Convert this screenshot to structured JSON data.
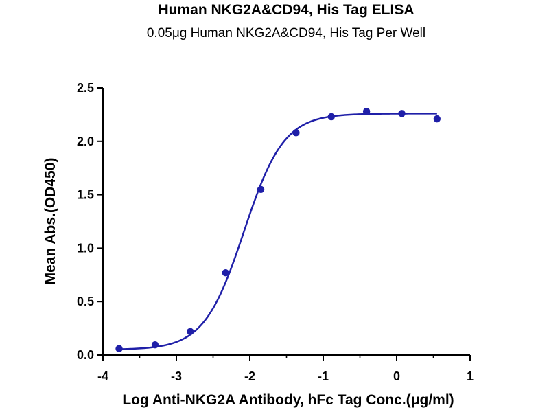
{
  "colors": {
    "series": "#1f1fa8",
    "axis": "#000000",
    "text": "#000000"
  },
  "chart_data": {
    "type": "scatter",
    "title": "Human NKG2A&CD94, His Tag ELISA",
    "subtitle": "0.05μg Human NKG2A&CD94, His Tag Per Well",
    "xlabel": "Log Anti-NKG2A Antibody, hFc Tag Conc.(μg/ml)",
    "ylabel": "Mean Abs.(OD450)",
    "xlim": [
      -4,
      1
    ],
    "ylim": [
      0,
      2.5
    ],
    "x_ticks": [
      "-4",
      "-3",
      "-2",
      "-1",
      "0",
      "1"
    ],
    "y_ticks": [
      "0.0",
      "0.5",
      "1.0",
      "1.5",
      "2.0",
      "2.5"
    ],
    "grid": false,
    "legend": "none",
    "series": [
      {
        "points": [
          {
            "x": -3.78,
            "y": 0.06
          },
          {
            "x": -3.29,
            "y": 0.095
          },
          {
            "x": -2.81,
            "y": 0.22
          },
          {
            "x": -2.33,
            "y": 0.77
          },
          {
            "x": -1.85,
            "y": 1.55
          },
          {
            "x": -1.37,
            "y": 2.08
          },
          {
            "x": -0.89,
            "y": 2.23
          },
          {
            "x": -0.41,
            "y": 2.28
          },
          {
            "x": 0.07,
            "y": 2.26
          },
          {
            "x": 0.55,
            "y": 2.21
          }
        ],
        "fit": {
          "model": "4PL",
          "bottom": 0.05,
          "top": 2.26,
          "logEC50": -2.08,
          "hill": 1.6,
          "x_range": [
            -3.78,
            0.55
          ]
        }
      }
    ]
  }
}
